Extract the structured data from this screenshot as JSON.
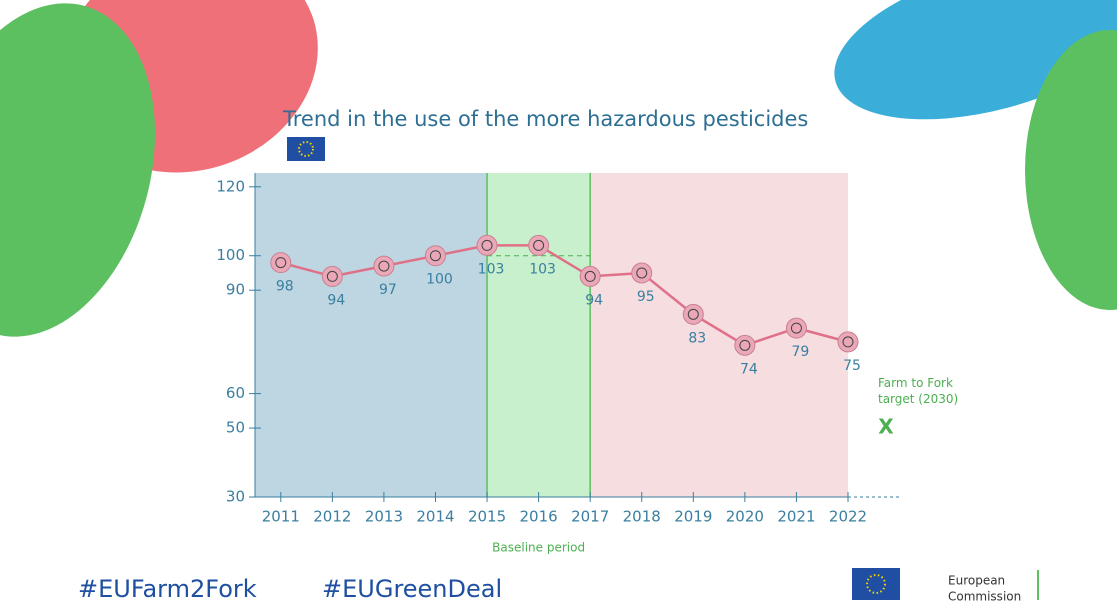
{
  "chart_data": {
    "type": "line",
    "title": "Trend in the use of the more hazardous pesticides",
    "x": [
      2011,
      2012,
      2013,
      2014,
      2015,
      2016,
      2017,
      2018,
      2019,
      2020,
      2021,
      2022
    ],
    "values": [
      98,
      94,
      97,
      100,
      103,
      103,
      94,
      95,
      83,
      74,
      79,
      75
    ],
    "color": "#e07088",
    "xlim": [
      2010.5,
      2022
    ],
    "ylim": [
      30,
      124
    ],
    "yticks": [
      30,
      50,
      60,
      90,
      100,
      120
    ],
    "baseline": {
      "label": "Baseline period",
      "start": 2015,
      "end": 2017,
      "value": 100
    },
    "target": {
      "label": "Farm to Fork target (2030)",
      "marker": "X",
      "value": 50
    }
  },
  "footer": {
    "hashtags": [
      "#EUFarm2Fork",
      "#EUGreenDeal"
    ],
    "logo": [
      "European",
      "Commission"
    ]
  }
}
